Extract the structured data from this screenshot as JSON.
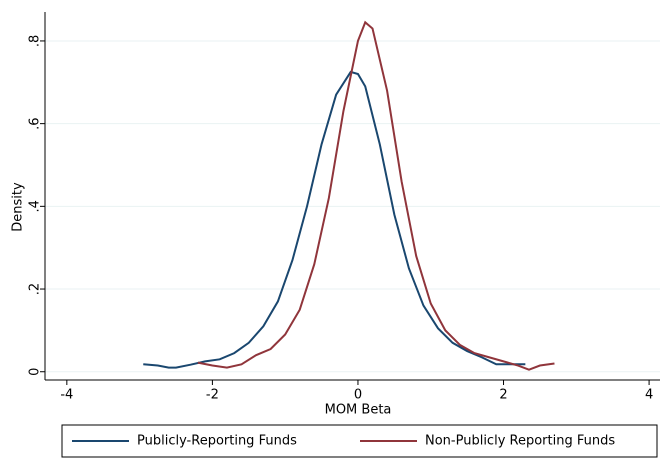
{
  "chart_data": {
    "type": "line",
    "x_label": "MOM Beta",
    "y_label": "Density",
    "xlim": [
      -4.3,
      4.15
    ],
    "ylim": [
      -0.02,
      0.87
    ],
    "xticks": [
      -4,
      -2,
      0,
      2,
      4
    ],
    "yticks": [
      0,
      {
        "value": 0.2,
        "label": ".2"
      },
      {
        "value": 0.4,
        "label": ".4"
      },
      {
        "value": 0.6,
        "label": ".6"
      },
      {
        "value": 0.8,
        "label": ".8"
      }
    ],
    "grid": true,
    "legend": "bottom",
    "series": [
      {
        "name": "Publicly-Reporting Funds",
        "color": "#1a476f",
        "x": [
          -2.95,
          -2.75,
          -2.6,
          -2.5,
          -2.3,
          -2.1,
          -1.9,
          -1.7,
          -1.5,
          -1.3,
          -1.1,
          -0.9,
          -0.7,
          -0.5,
          -0.3,
          -0.1,
          0,
          0.1,
          0.3,
          0.5,
          0.7,
          0.9,
          1.1,
          1.3,
          1.5,
          1.7,
          1.9,
          2.1,
          2.3
        ],
        "values": [
          0.018,
          0.015,
          0.01,
          0.01,
          0.017,
          0.025,
          0.03,
          0.045,
          0.07,
          0.11,
          0.17,
          0.27,
          0.4,
          0.55,
          0.67,
          0.725,
          0.72,
          0.69,
          0.55,
          0.38,
          0.25,
          0.16,
          0.105,
          0.07,
          0.05,
          0.035,
          0.018,
          0.018,
          0.018
        ]
      },
      {
        "name": "Non-Publicly Reporting Funds",
        "color": "#90353b",
        "x": [
          -2.2,
          -2.0,
          -1.8,
          -1.6,
          -1.4,
          -1.2,
          -1.0,
          -0.8,
          -0.6,
          -0.4,
          -0.2,
          0,
          0.1,
          0.2,
          0.4,
          0.6,
          0.8,
          1.0,
          1.2,
          1.4,
          1.6,
          1.8,
          2.0,
          2.2,
          2.35,
          2.5,
          2.7
        ],
        "values": [
          0.022,
          0.015,
          0.01,
          0.018,
          0.04,
          0.055,
          0.09,
          0.15,
          0.26,
          0.42,
          0.63,
          0.8,
          0.845,
          0.83,
          0.68,
          0.46,
          0.28,
          0.165,
          0.1,
          0.065,
          0.045,
          0.035,
          0.025,
          0.015,
          0.005,
          0.015,
          0.02
        ]
      }
    ]
  }
}
